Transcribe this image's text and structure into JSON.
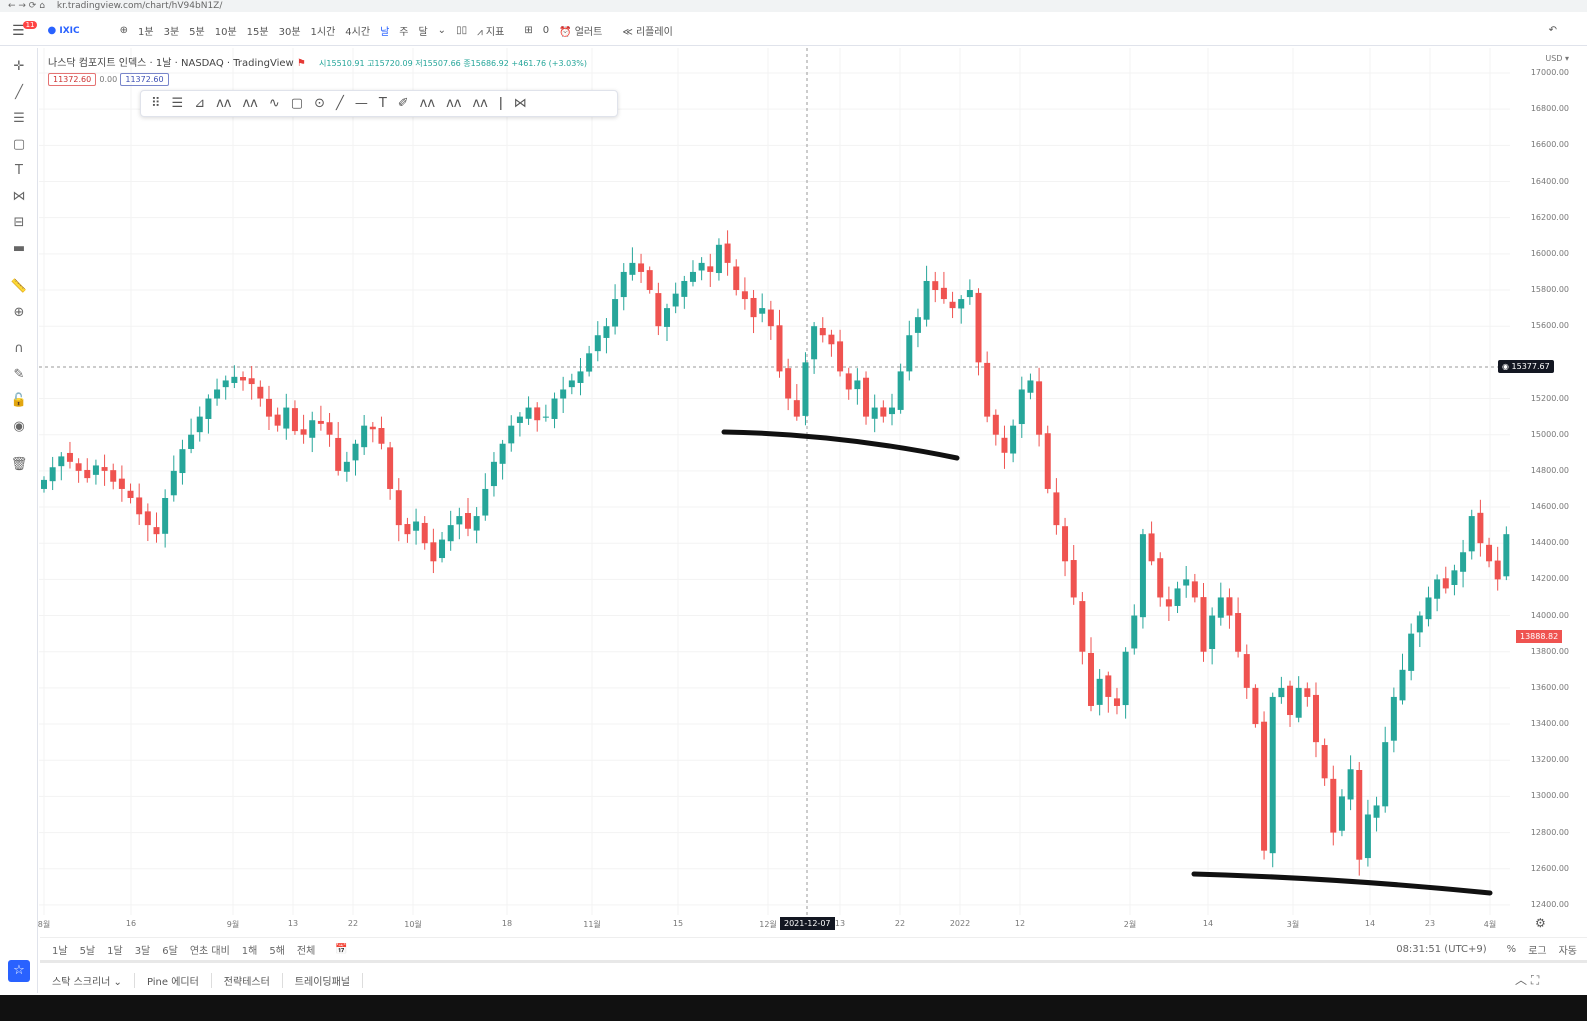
{
  "browser": {
    "url": "kr.tradingview.com/chart/hV94bN1Z/"
  },
  "topbar": {
    "notif_count": "11",
    "symbol": "IXIC",
    "intervals": [
      "1분",
      "3분",
      "5분",
      "10분",
      "15분",
      "30분",
      "1시간",
      "4시간",
      "날",
      "주",
      "달"
    ],
    "indicators": "지표",
    "layouts_count": "0",
    "alert": "얼러트",
    "replay": "리플레이"
  },
  "legend": {
    "title": "나스닥 컴포지트 인덱스 · 1날 · NASDAQ · TradingView",
    "open": "시15510.91",
    "high": "고15720.09",
    "low": "저15507.66",
    "close": "종15686.92",
    "change": "+461.76 (+3.03%)",
    "box1": "11372.60",
    "mid": "0.00",
    "box2": "11372.60"
  },
  "yaxis": {
    "currency": "USD ▾",
    "ticks": [
      "17000.00",
      "16800.00",
      "16600.00",
      "16400.00",
      "16200.00",
      "16000.00",
      "15800.00",
      "15600.00",
      "15200.00",
      "15000.00",
      "14800.00",
      "14600.00",
      "14400.00",
      "14200.00",
      "14000.00",
      "13800.00",
      "13600.00",
      "13400.00",
      "13200.00",
      "13000.00",
      "12800.00",
      "12600.00",
      "12400.00"
    ],
    "crosshair_price": "15377.67",
    "last_price": "13888.82"
  },
  "xaxis": {
    "ticks": [
      "8월",
      "16",
      "9월",
      "13",
      "22",
      "10월",
      "18",
      "11월",
      "15",
      "12월",
      "13",
      "22",
      "2022",
      "12",
      "2월",
      "14",
      "3월",
      "14",
      "23",
      "4월"
    ],
    "crosshair_date": "2021-12-07"
  },
  "ranges": {
    "items": [
      "1날",
      "5날",
      "1달",
      "3달",
      "6달",
      "연초 대비",
      "1해",
      "5해",
      "전체"
    ],
    "time": "08:31:51 (UTC+9)",
    "pct": "%",
    "log": "로그",
    "auto": "자동"
  },
  "panels": {
    "items": [
      "스탁 스크리너 ⌄",
      "Pine 에디터",
      "전략테스터",
      "트레이딩패널"
    ]
  },
  "colors": {
    "up": "#26a69a",
    "down": "#ef5350",
    "accent": "#2962ff"
  },
  "chart_data": {
    "type": "candlestick",
    "ylim": [
      12400,
      17000
    ],
    "closes": [
      14750,
      14820,
      14880,
      14850,
      14800,
      14760,
      14830,
      14800,
      14740,
      14700,
      14650,
      14560,
      14500,
      14450,
      14650,
      14800,
      14920,
      15000,
      15100,
      15200,
      15250,
      15300,
      15320,
      15300,
      15280,
      15200,
      15100,
      15050,
      15150,
      15020,
      15000,
      15080,
      15060,
      15000,
      14800,
      14850,
      14950,
      15050,
      15030,
      14950,
      14700,
      14500,
      14450,
      14520,
      14400,
      14300,
      14420,
      14500,
      14550,
      14480,
      14550,
      14700,
      14850,
      14950,
      15050,
      15100,
      15150,
      15080,
      15100,
      15200,
      15250,
      15300,
      15350,
      15450,
      15550,
      15600,
      15750,
      15900,
      15950,
      15900,
      15800,
      15600,
      15700,
      15780,
      15850,
      15900,
      15950,
      15900,
      16050,
      15950,
      15800,
      15750,
      15650,
      15700,
      15600,
      15350,
      15200,
      15100,
      15400,
      15600,
      15550,
      15500,
      15350,
      15250,
      15300,
      15100,
      15150,
      15100,
      15150,
      15350,
      15550,
      15650,
      15850,
      15800,
      15750,
      15700,
      15750,
      15800,
      15400,
      15100,
      15000,
      14900,
      15050,
      15250,
      15300,
      15000,
      14700,
      14500,
      14300,
      14100,
      13800,
      13500,
      13650,
      13550,
      13500,
      13800,
      14000,
      14450,
      14300,
      14100,
      14050,
      14150,
      14200,
      14100,
      13800,
      14000,
      14100,
      14000,
      13800,
      13600,
      13400,
      12700,
      13550,
      13600,
      13450,
      13600,
      13550,
      13300,
      13100,
      12800,
      13000,
      13150,
      12650,
      12900,
      12950,
      13300,
      13550,
      13700,
      13900,
      14000,
      14100,
      14200,
      14150,
      14250,
      14350,
      14550,
      14400,
      14300,
      14200,
      14450,
      13888
    ]
  }
}
